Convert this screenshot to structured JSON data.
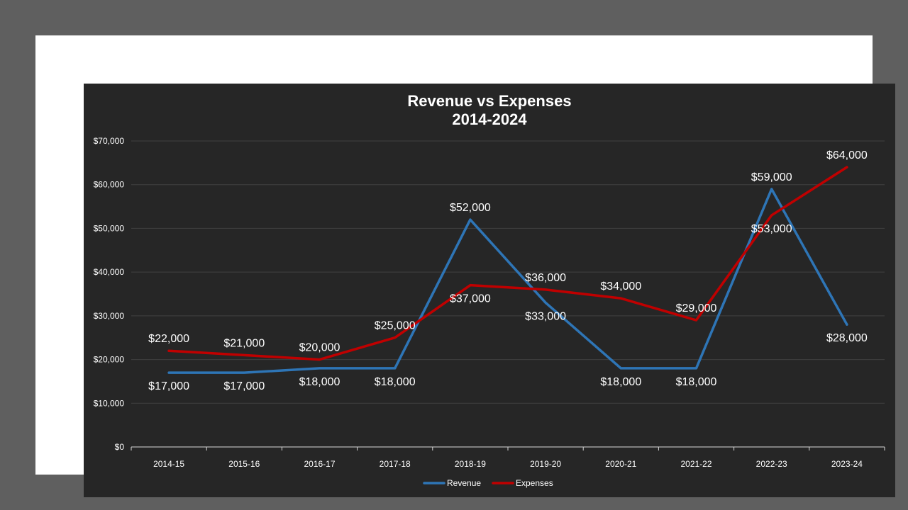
{
  "chart_data": {
    "type": "line",
    "title": "Revenue vs Expenses",
    "subtitle": "2014-2024",
    "xlabel": "",
    "ylabel": "",
    "categories": [
      "2014-15",
      "2015-16",
      "2016-17",
      "2017-18",
      "2018-19",
      "2019-20",
      "2020-21",
      "2021-22",
      "2022-23",
      "2023-24"
    ],
    "series": [
      {
        "name": "Revenue",
        "color": "#2e75b6",
        "values": [
          17000,
          17000,
          18000,
          18000,
          52000,
          33000,
          18000,
          18000,
          59000,
          28000
        ],
        "labels": [
          "$17,000",
          "$17,000",
          "$18,000",
          "$18,000",
          "$52,000",
          "$33,000",
          "$18,000",
          "$18,000",
          "$59,000",
          "$28,000"
        ],
        "label_side": [
          "below",
          "below",
          "below",
          "below",
          "above",
          "below",
          "below",
          "below",
          "above",
          "below"
        ]
      },
      {
        "name": "Expenses",
        "color": "#c00000",
        "values": [
          22000,
          21000,
          20000,
          25000,
          37000,
          36000,
          34000,
          29000,
          53000,
          64000
        ],
        "labels": [
          "$22,000",
          "$21,000",
          "$20,000",
          "$25,000",
          "$37,000",
          "$36,000",
          "$34,000",
          "$29,000",
          "$53,000",
          "$64,000"
        ],
        "label_side": [
          "above",
          "above",
          "above",
          "above",
          "below",
          "above",
          "above",
          "above",
          "below",
          "above"
        ]
      }
    ],
    "ylim": [
      0,
      70000
    ],
    "yticks": [
      0,
      10000,
      20000,
      30000,
      40000,
      50000,
      60000,
      70000
    ],
    "ytick_labels": [
      "$0",
      "$10,000",
      "$20,000",
      "$30,000",
      "$40,000",
      "$50,000",
      "$60,000",
      "$70,000"
    ],
    "grid": true,
    "legend": "bottom",
    "colors": {
      "background": "#262626",
      "frame": "#ffffff",
      "outer": "#5f5f5f",
      "grid": "#404040",
      "axis": "#d9d9d9",
      "text": "#ffffff"
    }
  }
}
